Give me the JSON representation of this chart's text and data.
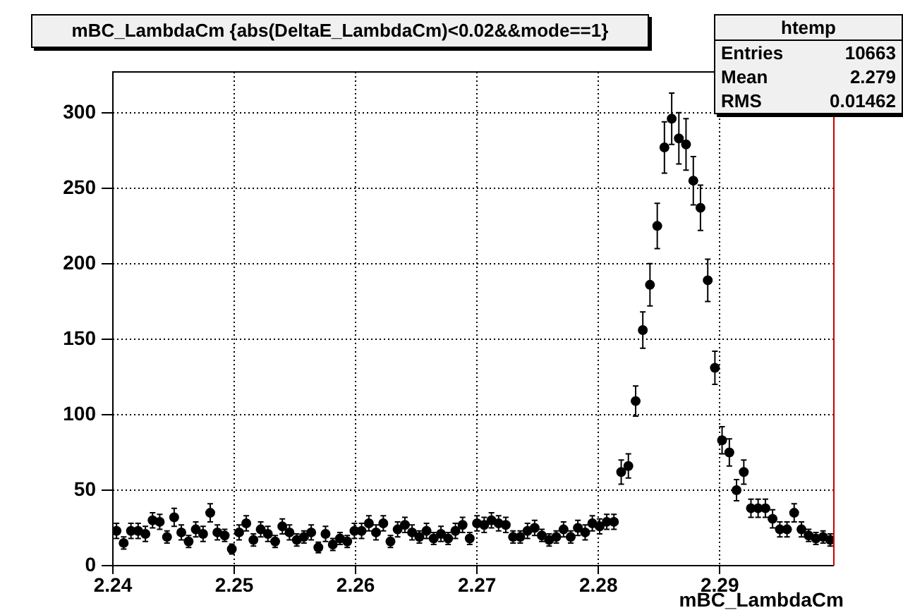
{
  "chart_data": {
    "type": "scatter",
    "title": "mBC_LambdaCm {abs(DeltaE_LambdaCm)<0.02&&mode==1}",
    "xlabel": "mBC_LambdaCm",
    "x": [
      2.2403,
      2.24089,
      2.24149,
      2.24208,
      2.24268,
      2.24327,
      2.24386,
      2.24446,
      2.24505,
      2.24564,
      2.24624,
      2.24683,
      2.24743,
      2.24802,
      2.24861,
      2.24921,
      2.2498,
      2.2504,
      2.25099,
      2.25158,
      2.25218,
      2.25277,
      2.25337,
      2.25396,
      2.25455,
      2.25515,
      2.25574,
      2.25634,
      2.25693,
      2.25752,
      2.25812,
      2.25871,
      2.25931,
      2.2599,
      2.26049,
      2.26109,
      2.26168,
      2.26228,
      2.26287,
      2.26346,
      2.26406,
      2.26465,
      2.26525,
      2.26584,
      2.26643,
      2.26703,
      2.26762,
      2.26822,
      2.26881,
      2.2694,
      2.27,
      2.27059,
      2.27119,
      2.27178,
      2.27237,
      2.27297,
      2.27356,
      2.27416,
      2.27475,
      2.27534,
      2.27594,
      2.27653,
      2.27713,
      2.27772,
      2.27831,
      2.27891,
      2.2795,
      2.2801,
      2.28069,
      2.28128,
      2.28188,
      2.28247,
      2.28307,
      2.28366,
      2.28425,
      2.28485,
      2.28544,
      2.28604,
      2.28663,
      2.28722,
      2.28782,
      2.28841,
      2.28901,
      2.2896,
      2.29019,
      2.29079,
      2.29138,
      2.29198,
      2.29257,
      2.29316,
      2.29376,
      2.29435,
      2.29495,
      2.29554,
      2.29613,
      2.29673,
      2.29732,
      2.29792,
      2.29851,
      2.2991
    ],
    "values": [
      23,
      15,
      23,
      23,
      21,
      30,
      29,
      19,
      32,
      22,
      16,
      24,
      21,
      35,
      22,
      20,
      11,
      22,
      28,
      17,
      24,
      21,
      16,
      26,
      22,
      17,
      19,
      22,
      12,
      21,
      14,
      18,
      16,
      23,
      23,
      28,
      22,
      28,
      16,
      24,
      27,
      22,
      19,
      23,
      18,
      21,
      18,
      23,
      27,
      18,
      28,
      27,
      30,
      28,
      27,
      19,
      19,
      23,
      25,
      20,
      17,
      19,
      24,
      19,
      25,
      22,
      28,
      26,
      29,
      29,
      62,
      66,
      109,
      156,
      186,
      225,
      277,
      296,
      283,
      279,
      255,
      237,
      189,
      131,
      83,
      75,
      50,
      62,
      38,
      38,
      38,
      31,
      24,
      24,
      35,
      24,
      20,
      18,
      19,
      17
    ],
    "errors": [
      5,
      4,
      5,
      5,
      5,
      5,
      5,
      4,
      6,
      5,
      4,
      5,
      5,
      6,
      5,
      4,
      3.3,
      5,
      5,
      4,
      5,
      5,
      4,
      5,
      5,
      4,
      4,
      5,
      3.5,
      5,
      4,
      4,
      4,
      5,
      5,
      5,
      5,
      5,
      4,
      5,
      5,
      5,
      4,
      5,
      4,
      5,
      4,
      5,
      5,
      4,
      5,
      5,
      5,
      5,
      5,
      4,
      4,
      5,
      5,
      4,
      4,
      4,
      5,
      4,
      5,
      5,
      5,
      5,
      5,
      5,
      8,
      8,
      10,
      12,
      14,
      15,
      17,
      17,
      17,
      17,
      16,
      15,
      14,
      11,
      9,
      9,
      7,
      8,
      6,
      6,
      6,
      6,
      5,
      5,
      6,
      5,
      4,
      4,
      4,
      4
    ],
    "color": "#000000",
    "marker": "circle",
    "grid": true,
    "xlim": [
      2.24,
      2.2994
    ],
    "ylim": [
      0,
      327
    ],
    "xticks": [
      2.24,
      2.25,
      2.26,
      2.27,
      2.28,
      2.29
    ],
    "yticks": [
      0,
      50,
      100,
      150,
      200,
      250,
      300
    ],
    "annotations": [
      "htemp",
      "Entries",
      "10663",
      "Mean",
      "2.279",
      "RMS",
      "0.01462"
    ]
  }
}
